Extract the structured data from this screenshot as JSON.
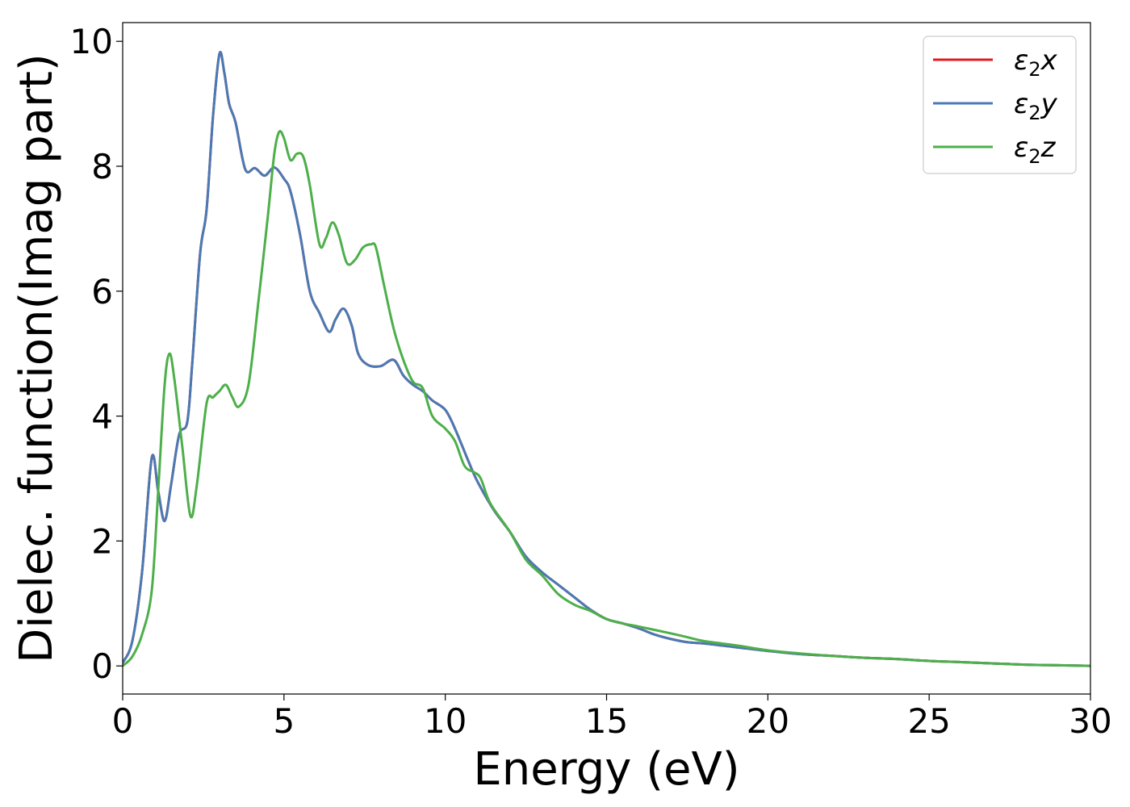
{
  "chart_data": {
    "type": "line",
    "title": "",
    "xlabel": "Energy (eV)",
    "ylabel": "Dielec. function(Imag part)",
    "xlim": [
      0,
      30
    ],
    "ylim": [
      -0.45,
      10.3
    ],
    "xticks": [
      0,
      5,
      10,
      15,
      20,
      25,
      30
    ],
    "yticks": [
      0,
      2,
      4,
      6,
      8,
      10
    ],
    "grid": false,
    "legend_position": "top-right",
    "series": [
      {
        "name": "ε2x",
        "legend": {
          "base": "ε",
          "sub": "2",
          "axis": "x"
        },
        "color": "#e41a1c",
        "points": [
          [
            0,
            0.05
          ],
          [
            0.3,
            0.4
          ],
          [
            0.6,
            1.5
          ],
          [
            0.9,
            3.33
          ],
          [
            1.1,
            2.8
          ],
          [
            1.3,
            2.32
          ],
          [
            1.5,
            2.9
          ],
          [
            1.75,
            3.7
          ],
          [
            2.0,
            3.9
          ],
          [
            2.15,
            4.8
          ],
          [
            2.4,
            6.6
          ],
          [
            2.6,
            7.3
          ],
          [
            2.8,
            8.8
          ],
          [
            3.0,
            9.8
          ],
          [
            3.15,
            9.5
          ],
          [
            3.3,
            9.0
          ],
          [
            3.5,
            8.7
          ],
          [
            3.8,
            7.95
          ],
          [
            4.1,
            7.97
          ],
          [
            4.4,
            7.85
          ],
          [
            4.7,
            7.98
          ],
          [
            5.0,
            7.8
          ],
          [
            5.2,
            7.6
          ],
          [
            5.5,
            6.9
          ],
          [
            5.8,
            6.0
          ],
          [
            6.1,
            5.65
          ],
          [
            6.4,
            5.35
          ],
          [
            6.6,
            5.55
          ],
          [
            6.85,
            5.72
          ],
          [
            7.1,
            5.45
          ],
          [
            7.3,
            5.0
          ],
          [
            7.6,
            4.82
          ],
          [
            8.0,
            4.8
          ],
          [
            8.4,
            4.9
          ],
          [
            8.7,
            4.65
          ],
          [
            9.0,
            4.5
          ],
          [
            9.3,
            4.4
          ],
          [
            9.6,
            4.25
          ],
          [
            10.0,
            4.1
          ],
          [
            10.3,
            3.8
          ],
          [
            10.7,
            3.3
          ],
          [
            11.0,
            2.95
          ],
          [
            11.5,
            2.5
          ],
          [
            12.0,
            2.15
          ],
          [
            12.5,
            1.75
          ],
          [
            13.0,
            1.5
          ],
          [
            13.5,
            1.3
          ],
          [
            14.0,
            1.1
          ],
          [
            14.5,
            0.9
          ],
          [
            15.0,
            0.75
          ],
          [
            15.5,
            0.68
          ],
          [
            16.0,
            0.6
          ],
          [
            16.5,
            0.5
          ],
          [
            17.0,
            0.43
          ],
          [
            17.5,
            0.38
          ],
          [
            18.0,
            0.36
          ],
          [
            19.0,
            0.3
          ],
          [
            20.0,
            0.24
          ],
          [
            21.0,
            0.19
          ],
          [
            22.0,
            0.16
          ],
          [
            23.0,
            0.13
          ],
          [
            24.0,
            0.11
          ],
          [
            25.0,
            0.08
          ],
          [
            26.0,
            0.06
          ],
          [
            27.0,
            0.04
          ],
          [
            28.0,
            0.02
          ],
          [
            29.0,
            0.01
          ],
          [
            30.0,
            0.0
          ]
        ]
      },
      {
        "name": "ε2y",
        "legend": {
          "base": "ε",
          "sub": "2",
          "axis": "y"
        },
        "color": "#4a7ab4",
        "points": [
          [
            0,
            0.05
          ],
          [
            0.3,
            0.4
          ],
          [
            0.6,
            1.5
          ],
          [
            0.9,
            3.33
          ],
          [
            1.1,
            2.8
          ],
          [
            1.3,
            2.32
          ],
          [
            1.5,
            2.9
          ],
          [
            1.75,
            3.7
          ],
          [
            2.0,
            3.9
          ],
          [
            2.15,
            4.8
          ],
          [
            2.4,
            6.6
          ],
          [
            2.6,
            7.3
          ],
          [
            2.8,
            8.8
          ],
          [
            3.0,
            9.8
          ],
          [
            3.15,
            9.5
          ],
          [
            3.3,
            9.0
          ],
          [
            3.5,
            8.7
          ],
          [
            3.8,
            7.95
          ],
          [
            4.1,
            7.97
          ],
          [
            4.4,
            7.85
          ],
          [
            4.7,
            7.98
          ],
          [
            5.0,
            7.8
          ],
          [
            5.2,
            7.6
          ],
          [
            5.5,
            6.9
          ],
          [
            5.8,
            6.0
          ],
          [
            6.1,
            5.65
          ],
          [
            6.4,
            5.35
          ],
          [
            6.6,
            5.55
          ],
          [
            6.85,
            5.72
          ],
          [
            7.1,
            5.45
          ],
          [
            7.3,
            5.0
          ],
          [
            7.6,
            4.82
          ],
          [
            8.0,
            4.8
          ],
          [
            8.4,
            4.9
          ],
          [
            8.7,
            4.65
          ],
          [
            9.0,
            4.5
          ],
          [
            9.3,
            4.4
          ],
          [
            9.6,
            4.25
          ],
          [
            10.0,
            4.1
          ],
          [
            10.3,
            3.8
          ],
          [
            10.7,
            3.3
          ],
          [
            11.0,
            2.95
          ],
          [
            11.5,
            2.5
          ],
          [
            12.0,
            2.15
          ],
          [
            12.5,
            1.75
          ],
          [
            13.0,
            1.5
          ],
          [
            13.5,
            1.3
          ],
          [
            14.0,
            1.1
          ],
          [
            14.5,
            0.9
          ],
          [
            15.0,
            0.75
          ],
          [
            15.5,
            0.68
          ],
          [
            16.0,
            0.6
          ],
          [
            16.5,
            0.5
          ],
          [
            17.0,
            0.43
          ],
          [
            17.5,
            0.38
          ],
          [
            18.0,
            0.36
          ],
          [
            19.0,
            0.3
          ],
          [
            20.0,
            0.24
          ],
          [
            21.0,
            0.19
          ],
          [
            22.0,
            0.16
          ],
          [
            23.0,
            0.13
          ],
          [
            24.0,
            0.11
          ],
          [
            25.0,
            0.08
          ],
          [
            26.0,
            0.06
          ],
          [
            27.0,
            0.04
          ],
          [
            28.0,
            0.02
          ],
          [
            29.0,
            0.01
          ],
          [
            30.0,
            0.0
          ]
        ]
      },
      {
        "name": "ε2z",
        "legend": {
          "base": "ε",
          "sub": "2",
          "axis": "z"
        },
        "color": "#4daf4a",
        "points": [
          [
            0,
            0.0
          ],
          [
            0.3,
            0.15
          ],
          [
            0.6,
            0.5
          ],
          [
            0.9,
            1.2
          ],
          [
            1.1,
            2.8
          ],
          [
            1.3,
            4.5
          ],
          [
            1.45,
            5.0
          ],
          [
            1.6,
            4.6
          ],
          [
            1.85,
            3.5
          ],
          [
            2.1,
            2.4
          ],
          [
            2.3,
            2.9
          ],
          [
            2.6,
            4.2
          ],
          [
            2.8,
            4.3
          ],
          [
            3.0,
            4.4
          ],
          [
            3.2,
            4.5
          ],
          [
            3.4,
            4.3
          ],
          [
            3.6,
            4.15
          ],
          [
            3.9,
            4.5
          ],
          [
            4.2,
            5.8
          ],
          [
            4.5,
            7.2
          ],
          [
            4.7,
            8.2
          ],
          [
            4.85,
            8.55
          ],
          [
            5.0,
            8.45
          ],
          [
            5.2,
            8.1
          ],
          [
            5.4,
            8.2
          ],
          [
            5.6,
            8.15
          ],
          [
            5.8,
            7.7
          ],
          [
            6.1,
            6.75
          ],
          [
            6.3,
            6.85
          ],
          [
            6.5,
            7.1
          ],
          [
            6.7,
            6.9
          ],
          [
            6.95,
            6.45
          ],
          [
            7.2,
            6.5
          ],
          [
            7.45,
            6.7
          ],
          [
            7.7,
            6.75
          ],
          [
            7.85,
            6.7
          ],
          [
            8.1,
            6.1
          ],
          [
            8.4,
            5.4
          ],
          [
            8.7,
            4.9
          ],
          [
            9.0,
            4.55
          ],
          [
            9.3,
            4.45
          ],
          [
            9.6,
            4.0
          ],
          [
            10.0,
            3.8
          ],
          [
            10.3,
            3.6
          ],
          [
            10.6,
            3.2
          ],
          [
            10.9,
            3.1
          ],
          [
            11.1,
            3.0
          ],
          [
            11.4,
            2.6
          ],
          [
            12.0,
            2.15
          ],
          [
            12.5,
            1.7
          ],
          [
            13.0,
            1.45
          ],
          [
            13.5,
            1.15
          ],
          [
            14.0,
            0.98
          ],
          [
            14.5,
            0.88
          ],
          [
            15.0,
            0.75
          ],
          [
            15.5,
            0.68
          ],
          [
            16.0,
            0.63
          ],
          [
            17.0,
            0.52
          ],
          [
            17.5,
            0.46
          ],
          [
            18.0,
            0.4
          ],
          [
            19.0,
            0.33
          ],
          [
            20.0,
            0.25
          ],
          [
            21.0,
            0.2
          ],
          [
            22.0,
            0.16
          ],
          [
            23.0,
            0.13
          ],
          [
            24.0,
            0.11
          ],
          [
            25.0,
            0.08
          ],
          [
            26.0,
            0.06
          ],
          [
            27.0,
            0.04
          ],
          [
            28.0,
            0.02
          ],
          [
            29.0,
            0.01
          ],
          [
            30.0,
            0.0
          ]
        ]
      }
    ]
  }
}
